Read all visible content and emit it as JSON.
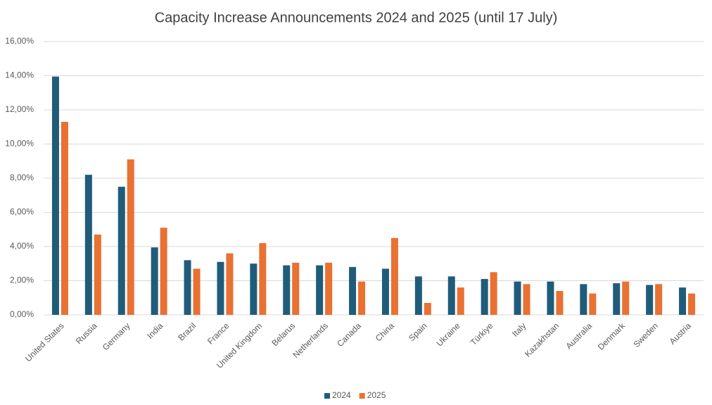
{
  "chart_data": {
    "type": "bar",
    "title": "Capacity Increase Announcements 2024 and 2025 (until 17 July)",
    "categories": [
      "United States",
      "Russia",
      "Germany",
      "India",
      "Brazil",
      "France",
      "United Kingdom",
      "Belarus",
      "Netherlands",
      "Canada",
      "China",
      "Spain",
      "Ukraine",
      "Türkiye",
      "Italy",
      "Kazakhstan",
      "Australia",
      "Denmark",
      "Sweden",
      "Austria"
    ],
    "series": [
      {
        "name": "2024",
        "color": "#1f5c7a",
        "values": [
          13.95,
          8.2,
          7.5,
          3.95,
          3.2,
          3.1,
          3.0,
          2.9,
          2.9,
          2.8,
          2.7,
          2.25,
          2.25,
          2.1,
          1.95,
          1.95,
          1.8,
          1.85,
          1.75,
          1.6
        ]
      },
      {
        "name": "2025",
        "color": "#e97132",
        "values": [
          11.3,
          4.7,
          9.1,
          5.1,
          2.7,
          3.6,
          4.2,
          3.05,
          3.05,
          1.95,
          4.5,
          0.7,
          1.6,
          2.5,
          1.8,
          1.4,
          1.25,
          1.95,
          1.8,
          1.25
        ]
      }
    ],
    "ylim": [
      0,
      16
    ],
    "yticks": [
      {
        "value": 0,
        "label": "0,00%"
      },
      {
        "value": 2,
        "label": "2,00%"
      },
      {
        "value": 4,
        "label": "4,00%"
      },
      {
        "value": 6,
        "label": "6,00%"
      },
      {
        "value": 8,
        "label": "8,00%"
      },
      {
        "value": 10,
        "label": "10,00%"
      },
      {
        "value": 12,
        "label": "12,00%"
      },
      {
        "value": 14,
        "label": "14,00%"
      },
      {
        "value": 16,
        "label": "16,00%"
      }
    ],
    "grid": true,
    "legend": "bottom"
  }
}
